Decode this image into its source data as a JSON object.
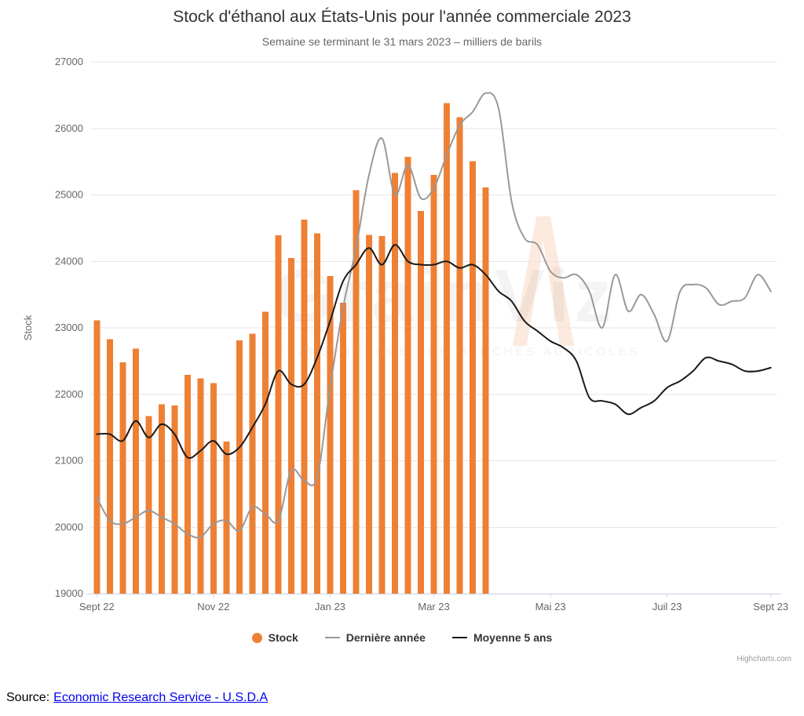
{
  "credits": "Highcharts.com",
  "source": {
    "label": "Source:",
    "link_text": "Economic Research Service - U.S.D.A"
  },
  "watermark": {
    "text": "GrainViz",
    "subtext": "LA TRANSPARENCE DES MARCHÉS AGRICOLES",
    "logo_glyph": "Λ"
  },
  "chart_data": {
    "type": "bar+line combo",
    "title": "Stock d'éthanol aux États-Unis pour l'année commerciale 2023",
    "subtitle": "Semaine se terminant le 31 mars 2023 – milliers de barils",
    "ylabel": "Stock",
    "ylim": [
      19000,
      27000
    ],
    "yticks": [
      19000,
      20000,
      21000,
      22000,
      23000,
      24000,
      25000,
      26000,
      27000
    ],
    "weeks_total": 53,
    "x_unit": "weeks from Sept 2022 to Sept 2023",
    "xticks": [
      {
        "week": 0,
        "label": "Sept 22"
      },
      {
        "week": 9,
        "label": "Nov 22"
      },
      {
        "week": 18,
        "label": "Jan 23"
      },
      {
        "week": 26,
        "label": "Mar 23"
      },
      {
        "week": 35,
        "label": "Mai 23"
      },
      {
        "week": 44,
        "label": "Juil 23"
      },
      {
        "week": 52,
        "label": "Sept 23"
      }
    ],
    "grid": true,
    "legend_position": "bottom-center",
    "series": [
      {
        "name": "Stock",
        "type": "bar",
        "color": "#ee8034",
        "values": [
          23110,
          22830,
          22480,
          22690,
          21670,
          21850,
          21830,
          22290,
          22240,
          22170,
          21290,
          22810,
          22910,
          23240,
          24390,
          24050,
          24630,
          24420,
          23780,
          23380,
          25070,
          24400,
          24380,
          25330,
          25570,
          24760,
          25300,
          26380,
          26170,
          25510,
          25110
        ]
      },
      {
        "name": "Dernière année",
        "type": "line",
        "color": "#999999",
        "values": [
          20450,
          20100,
          20050,
          20150,
          20250,
          20150,
          20050,
          19900,
          19850,
          20050,
          20100,
          19950,
          20300,
          20200,
          20100,
          20850,
          20700,
          20750,
          22100,
          23300,
          24200,
          25300,
          25850,
          25000,
          25450,
          24950,
          25100,
          25600,
          26050,
          26250,
          26530,
          26300,
          24900,
          24350,
          24250,
          23850,
          23750,
          23800,
          23550,
          23000,
          23800,
          23250,
          23500,
          23200,
          22800,
          23550,
          23650,
          23600,
          23350,
          23400,
          23450,
          23800,
          23550
        ]
      },
      {
        "name": "Moyenne 5 ans",
        "type": "line",
        "color": "#1a1a1a",
        "values": [
          21400,
          21400,
          21300,
          21600,
          21350,
          21550,
          21400,
          21050,
          21150,
          21300,
          21100,
          21200,
          21500,
          21850,
          22350,
          22150,
          22150,
          22550,
          23100,
          23700,
          23950,
          24200,
          23950,
          24250,
          24000,
          23950,
          23950,
          24000,
          23900,
          23950,
          23800,
          23550,
          23400,
          23100,
          22950,
          22800,
          22700,
          22500,
          21950,
          21900,
          21850,
          21700,
          21800,
          21900,
          22100,
          22200,
          22350,
          22550,
          22500,
          22450,
          22350,
          22350,
          22400
        ]
      }
    ]
  }
}
